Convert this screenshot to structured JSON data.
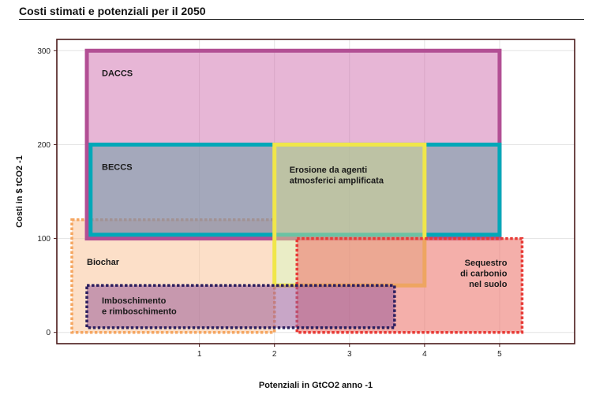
{
  "chart_data": {
    "type": "range-box",
    "title": "Costi stimati e potenziali per il 2050",
    "xlabel": "Potenziali in GtCO2 anno -1",
    "ylabel": "Costi in $ tCO2 -1",
    "xlim": [
      -0.9,
      6.0
    ],
    "ylim": [
      -12,
      312
    ],
    "xticks": [
      1,
      2,
      3,
      4,
      5
    ],
    "yticks": [
      0,
      100,
      200,
      300
    ],
    "grid": true,
    "regions": [
      {
        "name": "Biochar",
        "label": [
          "Biochar"
        ],
        "x": [
          -0.7,
          2.0
        ],
        "y": [
          0,
          120
        ],
        "fill": "#f9c49a",
        "fill_opacity": 0.55,
        "stroke": "#f5a661",
        "dashed": true,
        "label_at": [
          -0.5,
          72
        ],
        "anchor": "start"
      },
      {
        "name": "DACCS",
        "label": [
          "DACCS"
        ],
        "x": [
          -0.5,
          5.0
        ],
        "y": [
          100,
          300
        ],
        "fill": "#c95ea5",
        "fill_opacity": 0.45,
        "stroke": "#b24f94",
        "dashed": false,
        "label_at": [
          -0.3,
          273
        ],
        "anchor": "start"
      },
      {
        "name": "BECCS",
        "label": [
          "BECCS"
        ],
        "x": [
          -0.45,
          5.0
        ],
        "y": [
          104,
          200
        ],
        "fill": "#6d9da6",
        "fill_opacity": 0.55,
        "stroke": "#00a8b8",
        "dashed": false,
        "label_at": [
          -0.3,
          173
        ],
        "anchor": "start"
      },
      {
        "name": "Erosione da agenti atmosferici amplificata",
        "label": [
          "Erosione da agenti",
          "atmosferici amplificata"
        ],
        "x": [
          2.0,
          4.0
        ],
        "y": [
          50,
          200
        ],
        "fill": "#d6dc8e",
        "fill_opacity": 0.5,
        "stroke": "#f0e64a",
        "dashed": false,
        "label_at": [
          2.2,
          170
        ],
        "anchor": "start"
      },
      {
        "name": "Sequestro di carbonio nel suolo",
        "label": [
          "Sequestro",
          "di carbonio",
          "nel suolo"
        ],
        "x": [
          2.3,
          5.3
        ],
        "y": [
          0,
          100
        ],
        "fill": "#ec7a72",
        "fill_opacity": 0.6,
        "stroke": "#e83a36",
        "dashed": true,
        "label_at": [
          5.1,
          71
        ],
        "anchor": "end"
      },
      {
        "name": "Imboschimento e rimboschimento",
        "label": [
          "Imboschimento",
          "e rimboschimento"
        ],
        "x": [
          -0.5,
          3.6
        ],
        "y": [
          5,
          50
        ],
        "fill": "#9b5d99",
        "fill_opacity": 0.55,
        "stroke": "#2d2060",
        "dashed": true,
        "label_at": [
          -0.3,
          31
        ],
        "anchor": "start"
      }
    ]
  }
}
